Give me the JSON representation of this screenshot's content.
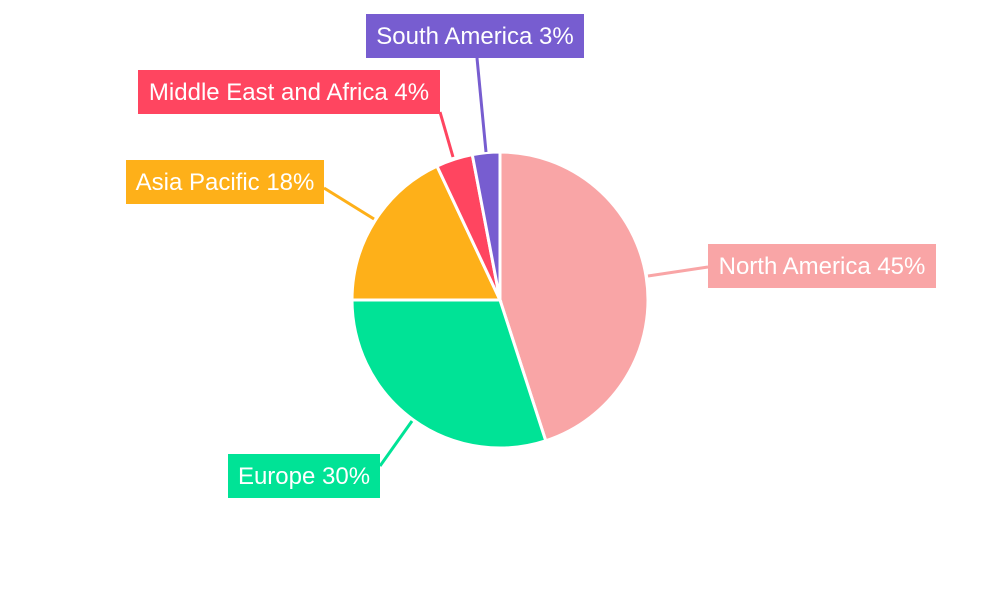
{
  "chart_data": {
    "type": "pie",
    "start_angle": "top, clockwise",
    "slices": [
      {
        "label": "North America",
        "value": 45,
        "text": "North America 45%",
        "color": "#F9A5A6"
      },
      {
        "label": "Europe",
        "value": 30,
        "text": "Europe 30%",
        "color": "#00E396"
      },
      {
        "label": "Asia Pacific",
        "value": 18,
        "text": "Asia Pacific 18%",
        "color": "#FEB019"
      },
      {
        "label": "Middle East and Africa",
        "value": 4,
        "text": "Middle East and Africa 4%",
        "color": "#FF4560"
      },
      {
        "label": "South America",
        "value": 3,
        "text": "South America 3%",
        "color": "#775DD0"
      }
    ],
    "legend": "none",
    "data_labels": "outside with leader lines"
  }
}
